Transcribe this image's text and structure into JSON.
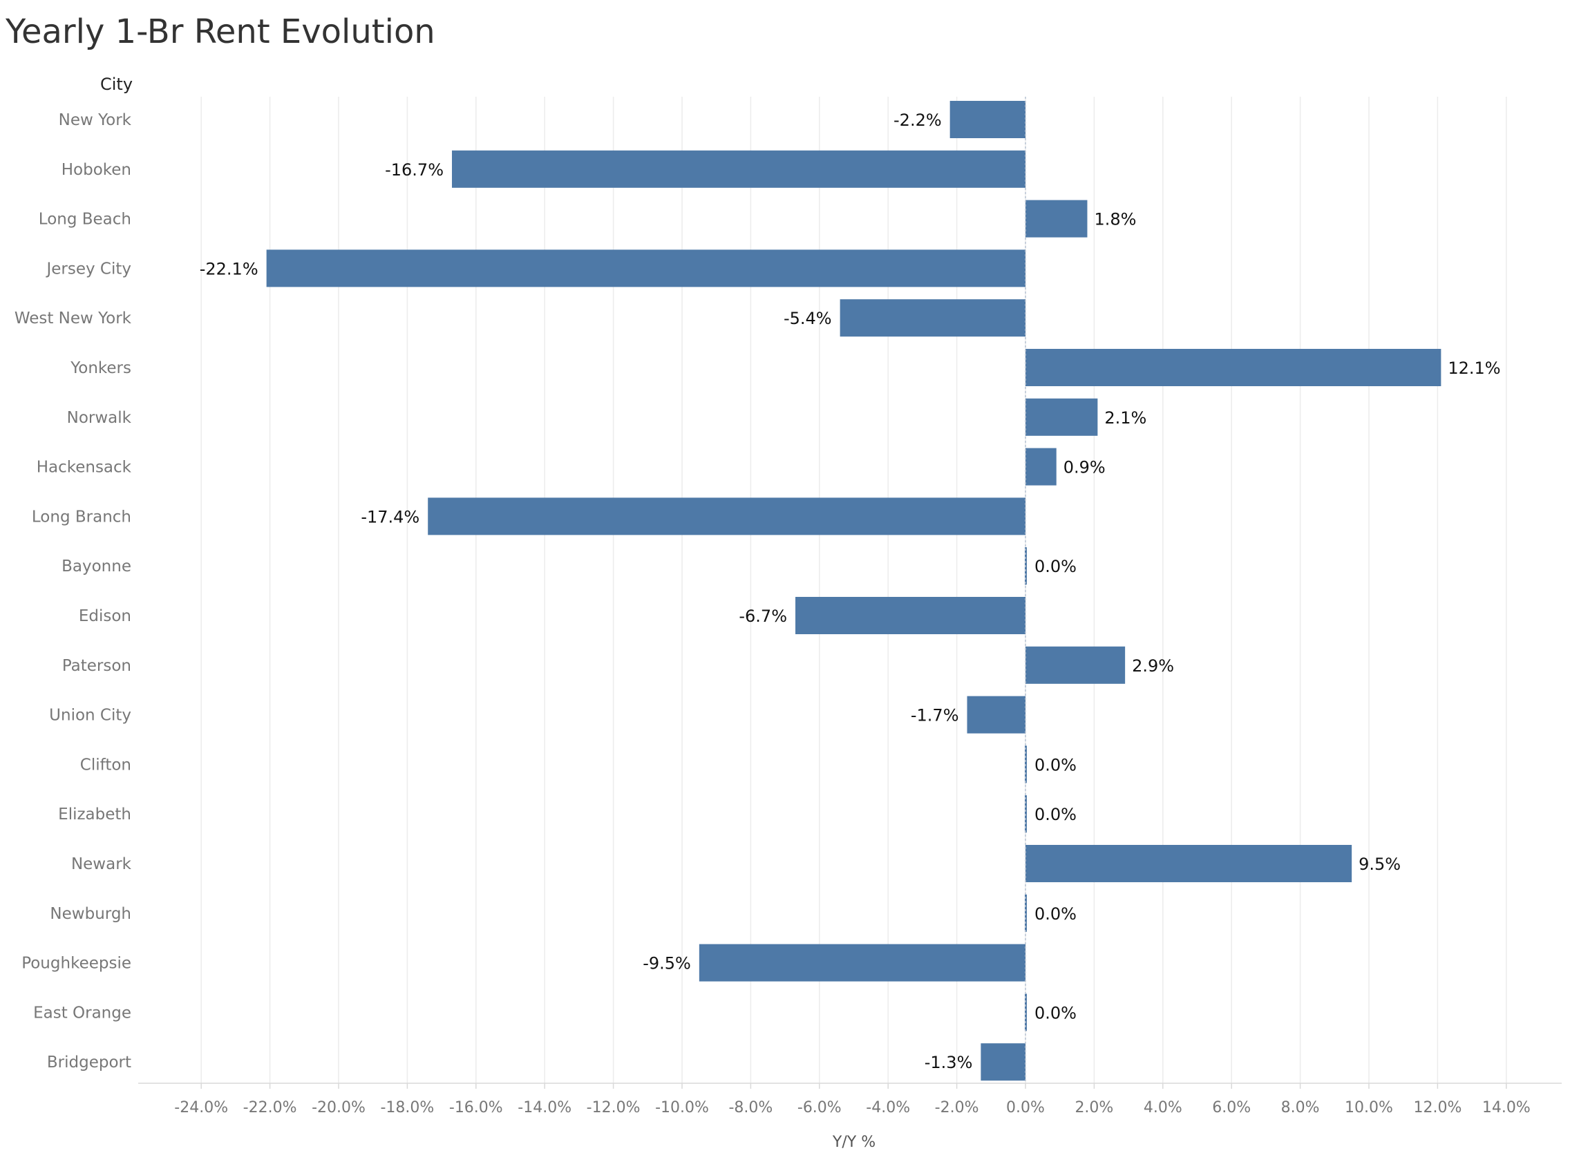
{
  "chart_data": {
    "type": "bar",
    "orientation": "horizontal",
    "title": "Yearly 1-Br Rent Evolution",
    "category_header": "City",
    "xlabel": "Y/Y %",
    "ylabel": "",
    "xlim": [
      -26,
      15.5
    ],
    "x_ticks": [
      -24,
      -22,
      -20,
      -18,
      -16,
      -14,
      -12,
      -10,
      -8,
      -6,
      -4,
      -2,
      0,
      2,
      4,
      6,
      8,
      10,
      12,
      14
    ],
    "x_tick_labels": [
      "-24.0%",
      "-22.0%",
      "-20.0%",
      "-18.0%",
      "-16.0%",
      "-14.0%",
      "-12.0%",
      "-10.0%",
      "-8.0%",
      "-6.0%",
      "-4.0%",
      "-2.0%",
      "0.0%",
      "2.0%",
      "4.0%",
      "6.0%",
      "8.0%",
      "10.0%",
      "12.0%",
      "14.0%"
    ],
    "grid": "vertical",
    "bar_color": "#4e79a7",
    "categories": [
      "New York",
      "Hoboken",
      "Long Beach",
      "Jersey City",
      "West New York",
      "Yonkers",
      "Norwalk",
      "Hackensack",
      "Long Branch",
      "Bayonne",
      "Edison",
      "Paterson",
      "Union City",
      "Clifton",
      "Elizabeth",
      "Newark",
      "Newburgh",
      "Poughkeepsie",
      "East Orange",
      "Bridgeport"
    ],
    "values": [
      -2.2,
      -16.7,
      1.8,
      -22.1,
      -5.4,
      12.1,
      2.1,
      0.9,
      -17.4,
      0.0,
      -6.7,
      2.9,
      -1.7,
      0.0,
      0.0,
      9.5,
      0.0,
      -9.5,
      0.0,
      -1.3
    ],
    "value_labels": [
      "-2.2%",
      "-16.7%",
      "1.8%",
      "-22.1%",
      "-5.4%",
      "12.1%",
      "2.1%",
      "0.9%",
      "-17.4%",
      "0.0%",
      "-6.7%",
      "2.9%",
      "-1.7%",
      "0.0%",
      "0.0%",
      "9.5%",
      "0.0%",
      "-9.5%",
      "0.0%",
      "-1.3%"
    ]
  }
}
